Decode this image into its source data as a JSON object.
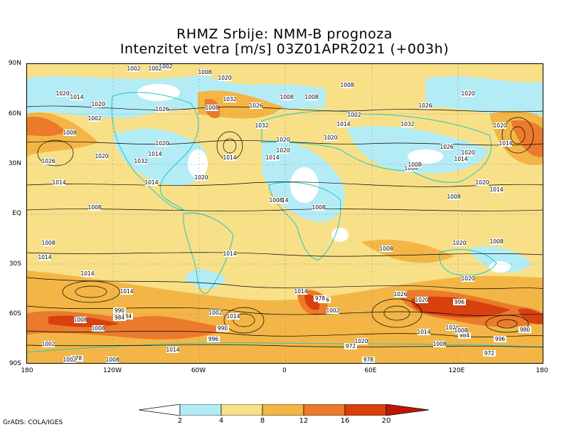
{
  "title": {
    "line1": "RHMZ Srbije: NMM-B prognoza",
    "line2": "Intenzitet vetra [m/s] 03Z01APR2021 (+003h)"
  },
  "axes": {
    "lat_ticks": [
      "90N",
      "60N",
      "30N",
      "EQ",
      "30S",
      "60S",
      "90S"
    ],
    "lon_ticks": [
      "180",
      "120W",
      "60W",
      "0",
      "60E",
      "120E",
      "180"
    ]
  },
  "colorbar": {
    "labels": [
      "2",
      "4",
      "8",
      "12",
      "16",
      "20"
    ],
    "colors": [
      "#ffffff",
      "#b4ecf6",
      "#f8e088",
      "#f3b646",
      "#ec7a2c",
      "#d8400e",
      "#c21406"
    ]
  },
  "pressure_labels": [
    "1002",
    "1002",
    "1008",
    "1020",
    "1008",
    "1032",
    "1020",
    "1014",
    "1020",
    "1008",
    "1002",
    "1026",
    "1008",
    "1032",
    "1026",
    "1020",
    "1002",
    "1008",
    "1008",
    "1002",
    "1026",
    "1020",
    "1014",
    "1020",
    "1020",
    "1032",
    "1020",
    "1020",
    "1014",
    "1020",
    "1014",
    "1026",
    "1008",
    "1014",
    "1026",
    "1032",
    "1014",
    "1020",
    "1014",
    "1020",
    "1014",
    "1014",
    "1020",
    "1014",
    "1008",
    "1008",
    "1014",
    "1008",
    "1008",
    "1008",
    "1008",
    "1014",
    "1008",
    "1014",
    "1008",
    "1020",
    "1020",
    "1014",
    "1014",
    "1014",
    "1026",
    "1020",
    "1014",
    "1002",
    "996",
    "978",
    "984",
    "1002",
    "1008",
    "990",
    "984",
    "996",
    "990",
    "996",
    "984",
    "978",
    "972",
    "978",
    "1008",
    "1014",
    "1008",
    "1002",
    "1008",
    "1020",
    "1026",
    "1008",
    "1002",
    "1014",
    "972",
    "996",
    "980"
  ],
  "footer": {
    "credit": "GrADS: COLA/IGES"
  }
}
